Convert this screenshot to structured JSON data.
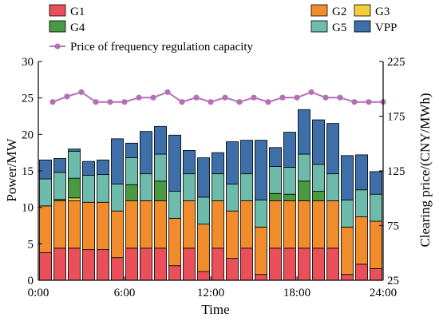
{
  "chart_data": {
    "type": "bar",
    "stacked": true,
    "x_ticks": [
      "0:00",
      "6:00",
      "12:00",
      "18:00",
      "24:00"
    ],
    "xlabel": "Time",
    "ylabel_left": "Power/MW",
    "ylabel_right": "Clearing price/(CNY/MWh)",
    "ylim_left": [
      0,
      30
    ],
    "ylim_right": [
      25,
      225
    ],
    "yticks_left": [
      0,
      5,
      10,
      15,
      20,
      25,
      30
    ],
    "yticks_right": [
      25,
      75,
      125,
      175,
      225
    ],
    "x": [
      1,
      2,
      3,
      4,
      5,
      6,
      7,
      8,
      9,
      10,
      11,
      12,
      13,
      14,
      15,
      16,
      17,
      18,
      19,
      20,
      21,
      22,
      23,
      24
    ],
    "legend_placement": "top",
    "series": [
      {
        "name": "G1",
        "color": "#e9505a",
        "values": [
          3.8,
          4.4,
          4.4,
          4.2,
          4.2,
          3.1,
          4.4,
          4.4,
          4.4,
          2.0,
          4.4,
          1.2,
          4.4,
          3.0,
          4.4,
          0.8,
          4.4,
          4.4,
          4.4,
          4.4,
          4.4,
          0.8,
          2.2,
          1.6
        ]
      },
      {
        "name": "G2",
        "color": "#f08c2c",
        "values": [
          6.4,
          6.5,
          6.5,
          6.5,
          6.5,
          6.4,
          6.5,
          6.5,
          6.5,
          6.5,
          6.5,
          6.5,
          6.5,
          6.5,
          6.5,
          6.5,
          6.5,
          6.5,
          6.5,
          6.5,
          6.5,
          6.5,
          6.5,
          6.5
        ]
      },
      {
        "name": "G3",
        "color": "#f5cd3c",
        "values": [
          0,
          0,
          0.4,
          0,
          0,
          0,
          0,
          0,
          0,
          0,
          0,
          0,
          0,
          0,
          0,
          0,
          0,
          0,
          0,
          0,
          0,
          0,
          0,
          0
        ]
      },
      {
        "name": "G4",
        "color": "#4a9a44",
        "values": [
          0,
          0.2,
          2.7,
          0,
          0,
          0,
          2.2,
          0,
          2.7,
          0,
          0,
          0,
          0,
          0,
          0,
          0,
          1.0,
          0.9,
          2.7,
          1.3,
          0,
          0,
          0,
          0
        ]
      },
      {
        "name": "G5",
        "color": "#6dbbaa",
        "values": [
          3.7,
          3.7,
          3.7,
          3.7,
          3.8,
          3.7,
          3.7,
          3.7,
          3.7,
          3.7,
          3.7,
          3.7,
          3.7,
          3.7,
          3.7,
          3.7,
          3.7,
          3.7,
          3.7,
          3.7,
          3.7,
          3.7,
          3.7,
          3.7
        ]
      },
      {
        "name": "VPP",
        "color": "#3e6fa8",
        "values": [
          2.6,
          1.9,
          0.3,
          1.9,
          2.0,
          6.2,
          2.0,
          5.8,
          3.8,
          7.7,
          3.2,
          5.4,
          2.9,
          5.8,
          4.6,
          8.2,
          2.6,
          4.8,
          6.1,
          6.1,
          6.9,
          6.1,
          4.8,
          3.1
        ]
      }
    ],
    "price_line": {
      "name": "Price of frequency regulation capacity",
      "color": "#b56fb5",
      "values": [
        188,
        193,
        197,
        188,
        188,
        188,
        192,
        192,
        197,
        188,
        192,
        188,
        192,
        188,
        192,
        188,
        192,
        192,
        197,
        192,
        192,
        188,
        188,
        188
      ]
    }
  }
}
